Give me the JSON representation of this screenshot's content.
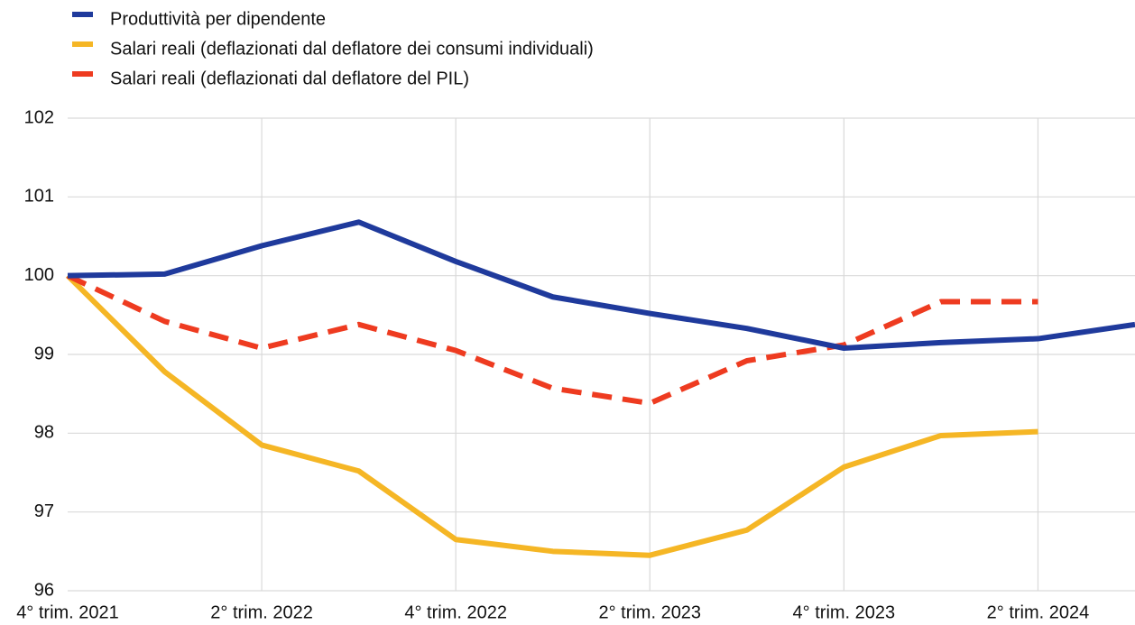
{
  "chart_data": {
    "type": "line",
    "categories": [
      "4° trim. 2021",
      null,
      "2° trim. 2022",
      null,
      "4° trim. 2022",
      null,
      "2° trim. 2023",
      null,
      "4° trim. 2023",
      null,
      "2° trim. 2024",
      null
    ],
    "series": [
      {
        "name": "Produttività per dipendente",
        "color": "#1f3a9c",
        "style": "solid",
        "values": [
          100,
          100.02,
          100.38,
          100.68,
          100.18,
          99.73,
          99.52,
          99.33,
          99.08,
          99.15,
          99.2,
          99.38
        ]
      },
      {
        "name": "Salari reali (deflazionati dal deflatore dei consumi individuali)",
        "color": "#f5b625",
        "style": "solid",
        "values": [
          100,
          98.78,
          97.85,
          97.52,
          96.65,
          96.5,
          96.45,
          96.77,
          97.57,
          97.97,
          98.02,
          null
        ]
      },
      {
        "name": "Salari reali (deflazionati dal deflatore del PIL)",
        "color": "#ee3b20",
        "style": "dashed",
        "values": [
          100,
          99.42,
          99.08,
          99.38,
          99.05,
          98.57,
          98.38,
          98.92,
          99.12,
          99.67,
          99.67,
          null
        ]
      }
    ],
    "ylim": [
      96,
      102
    ],
    "yticks": [
      96,
      97,
      98,
      99,
      100,
      101,
      102
    ],
    "grid": true
  }
}
